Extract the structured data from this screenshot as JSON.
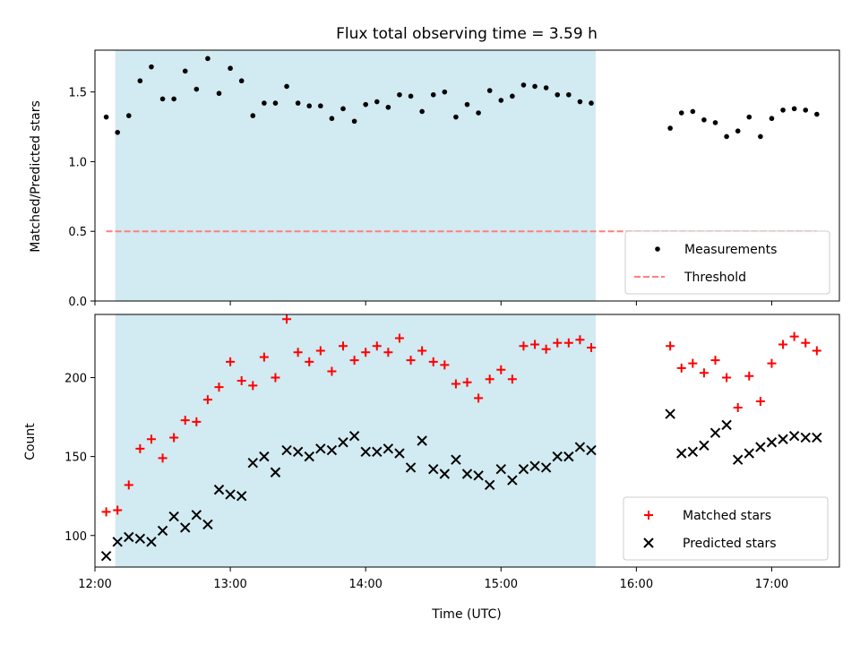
{
  "chart_data": [
    {
      "type": "scatter",
      "title": "Flux total observing time = 3.59 h",
      "ylabel": "Matched/Predicted stars",
      "xlabel": "",
      "ylim": [
        0,
        1.8
      ],
      "yticks": [
        0.0,
        0.5,
        1.0,
        1.5
      ],
      "ytick_labels": [
        "0.0",
        "0.5",
        "1.0",
        "1.5"
      ],
      "shaded_region": {
        "start": "12:09",
        "end": "15:42",
        "color": "#add8e6"
      },
      "legend_position": "lower-right",
      "series": [
        {
          "name": "Measurements",
          "marker": "dot",
          "color": "#000000",
          "points": [
            [
              "12:05",
              1.32
            ],
            [
              "12:10",
              1.21
            ],
            [
              "12:15",
              1.33
            ],
            [
              "12:20",
              1.58
            ],
            [
              "12:25",
              1.68
            ],
            [
              "12:30",
              1.45
            ],
            [
              "12:35",
              1.45
            ],
            [
              "12:40",
              1.65
            ],
            [
              "12:45",
              1.52
            ],
            [
              "12:50",
              1.74
            ],
            [
              "12:55",
              1.49
            ],
            [
              "13:00",
              1.67
            ],
            [
              "13:05",
              1.58
            ],
            [
              "13:10",
              1.33
            ],
            [
              "13:15",
              1.42
            ],
            [
              "13:20",
              1.42
            ],
            [
              "13:25",
              1.54
            ],
            [
              "13:30",
              1.42
            ],
            [
              "13:35",
              1.4
            ],
            [
              "13:40",
              1.4
            ],
            [
              "13:45",
              1.31
            ],
            [
              "13:50",
              1.38
            ],
            [
              "13:55",
              1.29
            ],
            [
              "14:00",
              1.41
            ],
            [
              "14:05",
              1.43
            ],
            [
              "14:10",
              1.39
            ],
            [
              "14:15",
              1.48
            ],
            [
              "14:20",
              1.47
            ],
            [
              "14:25",
              1.36
            ],
            [
              "14:30",
              1.48
            ],
            [
              "14:35",
              1.5
            ],
            [
              "14:40",
              1.32
            ],
            [
              "14:45",
              1.41
            ],
            [
              "14:50",
              1.35
            ],
            [
              "14:55",
              1.51
            ],
            [
              "15:00",
              1.44
            ],
            [
              "15:05",
              1.47
            ],
            [
              "15:10",
              1.55
            ],
            [
              "15:15",
              1.54
            ],
            [
              "15:20",
              1.53
            ],
            [
              "15:25",
              1.48
            ],
            [
              "15:30",
              1.48
            ],
            [
              "15:35",
              1.43
            ],
            [
              "15:40",
              1.42
            ],
            [
              "16:15",
              1.24
            ],
            [
              "16:20",
              1.35
            ],
            [
              "16:25",
              1.36
            ],
            [
              "16:30",
              1.3
            ],
            [
              "16:35",
              1.28
            ],
            [
              "16:40",
              1.18
            ],
            [
              "16:45",
              1.22
            ],
            [
              "16:50",
              1.32
            ],
            [
              "16:55",
              1.18
            ],
            [
              "17:00",
              1.31
            ],
            [
              "17:05",
              1.37
            ],
            [
              "17:10",
              1.38
            ],
            [
              "17:15",
              1.37
            ],
            [
              "17:20",
              1.34
            ]
          ]
        },
        {
          "name": "Threshold",
          "marker": "dashed-line",
          "color": "#ff7f7f",
          "points": [
            [
              "12:05",
              0.5
            ],
            [
              "17:20",
              0.5
            ]
          ]
        }
      ]
    },
    {
      "type": "scatter",
      "title": "",
      "xlabel": "Time (UTC)",
      "ylabel": "Count",
      "ylim": [
        80,
        240
      ],
      "yticks": [
        100,
        150,
        200
      ],
      "ytick_labels": [
        "100",
        "150",
        "200"
      ],
      "xlim": [
        "12:00",
        "17:30"
      ],
      "xticks": [
        "12:00",
        "13:00",
        "14:00",
        "15:00",
        "16:00",
        "17:00"
      ],
      "shaded_region": {
        "start": "12:09",
        "end": "15:42",
        "color": "#add8e6"
      },
      "legend_position": "lower-right",
      "series": [
        {
          "name": "Matched stars",
          "marker": "plus",
          "color": "#ff0000",
          "points": [
            [
              "12:05",
              115
            ],
            [
              "12:10",
              116
            ],
            [
              "12:15",
              132
            ],
            [
              "12:20",
              155
            ],
            [
              "12:25",
              161
            ],
            [
              "12:30",
              149
            ],
            [
              "12:35",
              162
            ],
            [
              "12:40",
              173
            ],
            [
              "12:45",
              172
            ],
            [
              "12:50",
              186
            ],
            [
              "12:55",
              194
            ],
            [
              "13:00",
              210
            ],
            [
              "13:05",
              198
            ],
            [
              "13:10",
              195
            ],
            [
              "13:15",
              213
            ],
            [
              "13:20",
              200
            ],
            [
              "13:25",
              237
            ],
            [
              "13:30",
              216
            ],
            [
              "13:35",
              210
            ],
            [
              "13:40",
              217
            ],
            [
              "13:45",
              204
            ],
            [
              "13:50",
              220
            ],
            [
              "13:55",
              211
            ],
            [
              "14:00",
              216
            ],
            [
              "14:05",
              220
            ],
            [
              "14:10",
              216
            ],
            [
              "14:15",
              225
            ],
            [
              "14:20",
              211
            ],
            [
              "14:25",
              217
            ],
            [
              "14:30",
              210
            ],
            [
              "14:35",
              208
            ],
            [
              "14:40",
              196
            ],
            [
              "14:45",
              197
            ],
            [
              "14:50",
              187
            ],
            [
              "14:55",
              199
            ],
            [
              "15:00",
              205
            ],
            [
              "15:05",
              199
            ],
            [
              "15:10",
              220
            ],
            [
              "15:15",
              221
            ],
            [
              "15:20",
              218
            ],
            [
              "15:25",
              222
            ],
            [
              "15:30",
              222
            ],
            [
              "15:35",
              224
            ],
            [
              "15:40",
              219
            ],
            [
              "16:15",
              220
            ],
            [
              "16:20",
              206
            ],
            [
              "16:25",
              209
            ],
            [
              "16:30",
              203
            ],
            [
              "16:35",
              211
            ],
            [
              "16:40",
              200
            ],
            [
              "16:45",
              181
            ],
            [
              "16:50",
              201
            ],
            [
              "16:55",
              185
            ],
            [
              "17:00",
              209
            ],
            [
              "17:05",
              221
            ],
            [
              "17:10",
              226
            ],
            [
              "17:15",
              222
            ],
            [
              "17:20",
              217
            ]
          ]
        },
        {
          "name": "Predicted stars",
          "marker": "x",
          "color": "#000000",
          "points": [
            [
              "12:05",
              87
            ],
            [
              "12:10",
              96
            ],
            [
              "12:15",
              99
            ],
            [
              "12:20",
              98
            ],
            [
              "12:25",
              96
            ],
            [
              "12:30",
              103
            ],
            [
              "12:35",
              112
            ],
            [
              "12:40",
              105
            ],
            [
              "12:45",
              113
            ],
            [
              "12:50",
              107
            ],
            [
              "12:55",
              129
            ],
            [
              "13:00",
              126
            ],
            [
              "13:05",
              125
            ],
            [
              "13:10",
              146
            ],
            [
              "13:15",
              150
            ],
            [
              "13:20",
              140
            ],
            [
              "13:25",
              154
            ],
            [
              "13:30",
              153
            ],
            [
              "13:35",
              150
            ],
            [
              "13:40",
              155
            ],
            [
              "13:45",
              154
            ],
            [
              "13:50",
              159
            ],
            [
              "13:55",
              163
            ],
            [
              "14:00",
              153
            ],
            [
              "14:05",
              153
            ],
            [
              "14:10",
              155
            ],
            [
              "14:15",
              152
            ],
            [
              "14:20",
              143
            ],
            [
              "14:25",
              160
            ],
            [
              "14:30",
              142
            ],
            [
              "14:35",
              139
            ],
            [
              "14:40",
              148
            ],
            [
              "14:45",
              139
            ],
            [
              "14:50",
              138
            ],
            [
              "14:55",
              132
            ],
            [
              "15:00",
              142
            ],
            [
              "15:05",
              135
            ],
            [
              "15:10",
              142
            ],
            [
              "15:15",
              144
            ],
            [
              "15:20",
              143
            ],
            [
              "15:25",
              150
            ],
            [
              "15:30",
              150
            ],
            [
              "15:35",
              156
            ],
            [
              "15:40",
              154
            ],
            [
              "16:15",
              177
            ],
            [
              "16:20",
              152
            ],
            [
              "16:25",
              153
            ],
            [
              "16:30",
              157
            ],
            [
              "16:35",
              165
            ],
            [
              "16:40",
              170
            ],
            [
              "16:45",
              148
            ],
            [
              "16:50",
              152
            ],
            [
              "16:55",
              156
            ],
            [
              "17:00",
              159
            ],
            [
              "17:05",
              161
            ],
            [
              "17:10",
              163
            ],
            [
              "17:15",
              162
            ],
            [
              "17:20",
              162
            ]
          ]
        }
      ]
    }
  ]
}
